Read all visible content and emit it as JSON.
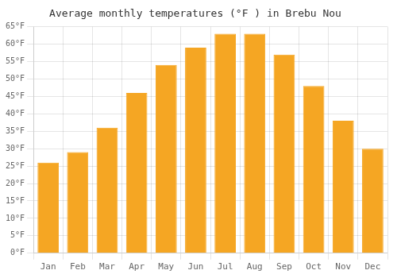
{
  "chart_data": {
    "type": "bar",
    "title": "Average monthly temperatures (°F ) in Brebu Nou",
    "categories": [
      "Jan",
      "Feb",
      "Mar",
      "Apr",
      "May",
      "Jun",
      "Jul",
      "Aug",
      "Sep",
      "Oct",
      "Nov",
      "Dec"
    ],
    "values": [
      26,
      29,
      36,
      46,
      54,
      59,
      63,
      63,
      57,
      48,
      38,
      30
    ],
    "color": "#F5A623",
    "ylim": [
      0,
      65
    ],
    "yticks": [
      {
        "value": 0,
        "label": "0°F"
      },
      {
        "value": 5,
        "label": "5°F"
      },
      {
        "value": 10,
        "label": "10°F"
      },
      {
        "value": 15,
        "label": "15°F"
      },
      {
        "value": 20,
        "label": "20°F"
      },
      {
        "value": 25,
        "label": "25°F"
      },
      {
        "value": 30,
        "label": "30°F"
      },
      {
        "value": 35,
        "label": "35°F"
      },
      {
        "value": 40,
        "label": "40°F"
      },
      {
        "value": 45,
        "label": "45°F"
      },
      {
        "value": 50,
        "label": "50°F"
      },
      {
        "value": 55,
        "label": "55°F"
      },
      {
        "value": 60,
        "label": "60°F"
      },
      {
        "value": 65,
        "label": "65°F"
      }
    ],
    "grid": true
  }
}
